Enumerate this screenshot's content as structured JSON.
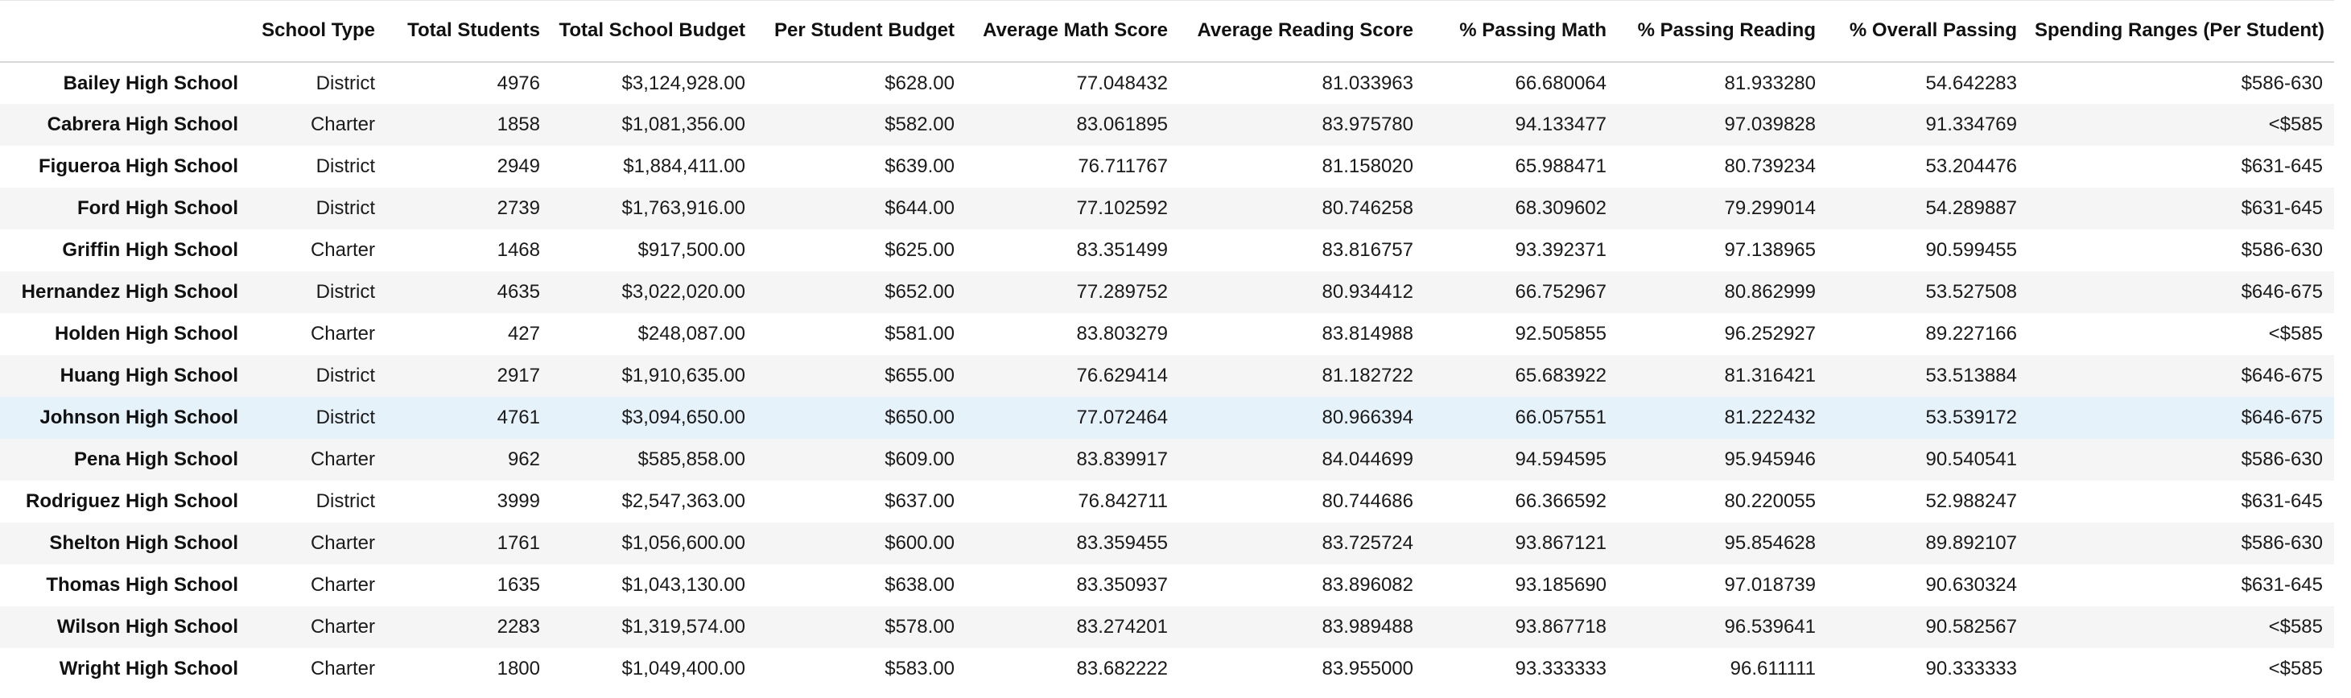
{
  "table": {
    "columns": [
      "",
      "School Type",
      "Total Students",
      "Total School Budget",
      "Per Student Budget",
      "Average Math Score",
      "Average Reading Score",
      "% Passing Math",
      "% Passing Reading",
      "% Overall Passing",
      "Spending Ranges (Per Student)"
    ],
    "rows": [
      {
        "name": "Bailey High School",
        "type": "District",
        "students": "4976",
        "budget": "$3,124,928.00",
        "per_student": "$628.00",
        "avg_math": "77.048432",
        "avg_reading": "81.033963",
        "pass_math": "66.680064",
        "pass_reading": "81.933280",
        "overall": "54.642283",
        "range": "$586-630"
      },
      {
        "name": "Cabrera High School",
        "type": "Charter",
        "students": "1858",
        "budget": "$1,081,356.00",
        "per_student": "$582.00",
        "avg_math": "83.061895",
        "avg_reading": "83.975780",
        "pass_math": "94.133477",
        "pass_reading": "97.039828",
        "overall": "91.334769",
        "range": "<$585"
      },
      {
        "name": "Figueroa High School",
        "type": "District",
        "students": "2949",
        "budget": "$1,884,411.00",
        "per_student": "$639.00",
        "avg_math": "76.711767",
        "avg_reading": "81.158020",
        "pass_math": "65.988471",
        "pass_reading": "80.739234",
        "overall": "53.204476",
        "range": "$631-645"
      },
      {
        "name": "Ford High School",
        "type": "District",
        "students": "2739",
        "budget": "$1,763,916.00",
        "per_student": "$644.00",
        "avg_math": "77.102592",
        "avg_reading": "80.746258",
        "pass_math": "68.309602",
        "pass_reading": "79.299014",
        "overall": "54.289887",
        "range": "$631-645"
      },
      {
        "name": "Griffin High School",
        "type": "Charter",
        "students": "1468",
        "budget": "$917,500.00",
        "per_student": "$625.00",
        "avg_math": "83.351499",
        "avg_reading": "83.816757",
        "pass_math": "93.392371",
        "pass_reading": "97.138965",
        "overall": "90.599455",
        "range": "$586-630"
      },
      {
        "name": "Hernandez High School",
        "type": "District",
        "students": "4635",
        "budget": "$3,022,020.00",
        "per_student": "$652.00",
        "avg_math": "77.289752",
        "avg_reading": "80.934412",
        "pass_math": "66.752967",
        "pass_reading": "80.862999",
        "overall": "53.527508",
        "range": "$646-675"
      },
      {
        "name": "Holden High School",
        "type": "Charter",
        "students": "427",
        "budget": "$248,087.00",
        "per_student": "$581.00",
        "avg_math": "83.803279",
        "avg_reading": "83.814988",
        "pass_math": "92.505855",
        "pass_reading": "96.252927",
        "overall": "89.227166",
        "range": "<$585"
      },
      {
        "name": "Huang High School",
        "type": "District",
        "students": "2917",
        "budget": "$1,910,635.00",
        "per_student": "$655.00",
        "avg_math": "76.629414",
        "avg_reading": "81.182722",
        "pass_math": "65.683922",
        "pass_reading": "81.316421",
        "overall": "53.513884",
        "range": "$646-675"
      },
      {
        "name": "Johnson High School",
        "type": "District",
        "students": "4761",
        "budget": "$3,094,650.00",
        "per_student": "$650.00",
        "avg_math": "77.072464",
        "avg_reading": "80.966394",
        "pass_math": "66.057551",
        "pass_reading": "81.222432",
        "overall": "53.539172",
        "range": "$646-675"
      },
      {
        "name": "Pena High School",
        "type": "Charter",
        "students": "962",
        "budget": "$585,858.00",
        "per_student": "$609.00",
        "avg_math": "83.839917",
        "avg_reading": "84.044699",
        "pass_math": "94.594595",
        "pass_reading": "95.945946",
        "overall": "90.540541",
        "range": "$586-630"
      },
      {
        "name": "Rodriguez High School",
        "type": "District",
        "students": "3999",
        "budget": "$2,547,363.00",
        "per_student": "$637.00",
        "avg_math": "76.842711",
        "avg_reading": "80.744686",
        "pass_math": "66.366592",
        "pass_reading": "80.220055",
        "overall": "52.988247",
        "range": "$631-645"
      },
      {
        "name": "Shelton High School",
        "type": "Charter",
        "students": "1761",
        "budget": "$1,056,600.00",
        "per_student": "$600.00",
        "avg_math": "83.359455",
        "avg_reading": "83.725724",
        "pass_math": "93.867121",
        "pass_reading": "95.854628",
        "overall": "89.892107",
        "range": "$586-630"
      },
      {
        "name": "Thomas High School",
        "type": "Charter",
        "students": "1635",
        "budget": "$1,043,130.00",
        "per_student": "$638.00",
        "avg_math": "83.350937",
        "avg_reading": "83.896082",
        "pass_math": "93.185690",
        "pass_reading": "97.018739",
        "overall": "90.630324",
        "range": "$631-645"
      },
      {
        "name": "Wilson High School",
        "type": "Charter",
        "students": "2283",
        "budget": "$1,319,574.00",
        "per_student": "$578.00",
        "avg_math": "83.274201",
        "avg_reading": "83.989488",
        "pass_math": "93.867718",
        "pass_reading": "96.539641",
        "overall": "90.582567",
        "range": "<$585"
      },
      {
        "name": "Wright High School",
        "type": "Charter",
        "students": "1800",
        "budget": "$1,049,400.00",
        "per_student": "$583.00",
        "avg_math": "83.682222",
        "avg_reading": "83.955000",
        "pass_math": "93.333333",
        "pass_reading": "96.611111",
        "overall": "90.333333",
        "range": "<$585"
      }
    ],
    "highlighted_row": "Johnson High School",
    "colors": {
      "stripe": "#f5f5f5",
      "hover_highlight": "#e6f2fa",
      "border": "#d8d8d8"
    }
  }
}
